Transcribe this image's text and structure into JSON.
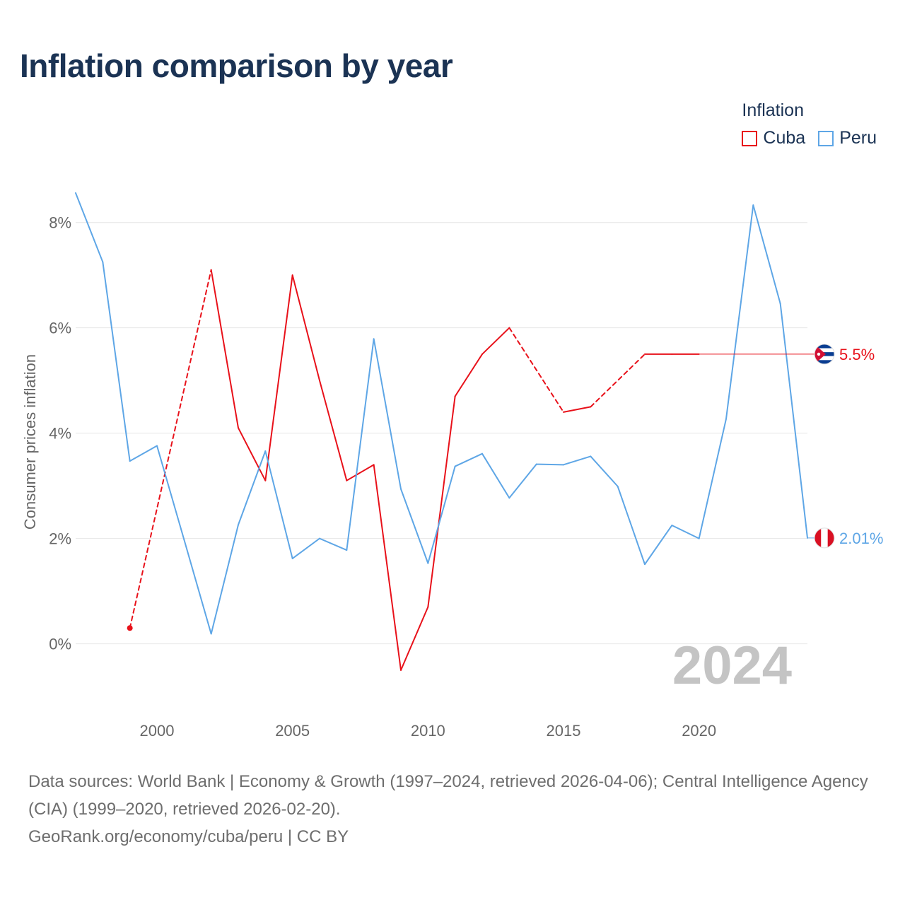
{
  "title": "Inflation comparison by year",
  "legend": {
    "title": "Inflation",
    "items": [
      {
        "name": "Cuba",
        "color": "#e8111a"
      },
      {
        "name": "Peru",
        "color": "#5ea6e6"
      }
    ]
  },
  "year_label": "2024",
  "sources": {
    "line1": "Data sources: World Bank | Economy & Growth (1997–2024, retrieved 2026-04-06); Central Intelligence Agency (CIA) (1999–2020, retrieved 2026-02-20).",
    "line2": "GeoRank.org/economy/cuba/peru | CC BY"
  },
  "chart_data": {
    "type": "line",
    "title": "Inflation comparison by year",
    "xlabel": "",
    "ylabel": "Consumer prices inflation",
    "xlim": [
      1997,
      2024
    ],
    "ylim": [
      -1.2,
      8.6
    ],
    "grid": true,
    "legend_position": "top-right",
    "x_ticks": [
      2000,
      2005,
      2010,
      2015,
      2020
    ],
    "y_ticks": [
      0,
      2,
      4,
      6,
      8
    ],
    "y_tick_labels": [
      "0%",
      "2%",
      "4%",
      "6%",
      "8%"
    ],
    "series": [
      {
        "name": "Cuba",
        "color": "#e8111a",
        "end_value_label": "5.5%",
        "points": [
          {
            "x": 1999,
            "y": 0.3
          },
          {
            "x": 2002,
            "y": 7.1
          },
          {
            "x": 2003,
            "y": 4.1
          },
          {
            "x": 2004,
            "y": 3.1
          },
          {
            "x": 2005,
            "y": 7.0
          },
          {
            "x": 2006,
            "y": 5.0
          },
          {
            "x": 2007,
            "y": 3.1
          },
          {
            "x": 2008,
            "y": 3.4
          },
          {
            "x": 2009,
            "y": -0.5
          },
          {
            "x": 2010,
            "y": 0.7
          },
          {
            "x": 2011,
            "y": 4.7
          },
          {
            "x": 2012,
            "y": 5.5
          },
          {
            "x": 2013,
            "y": 6.0
          },
          {
            "x": 2015,
            "y": 4.4
          },
          {
            "x": 2016,
            "y": 4.5
          },
          {
            "x": 2018,
            "y": 5.5
          },
          {
            "x": 2019,
            "y": 5.5
          },
          {
            "x": 2020,
            "y": 5.5
          }
        ]
      },
      {
        "name": "Peru",
        "color": "#5ea6e6",
        "end_value_label": "2.01%",
        "points": [
          {
            "x": 1997,
            "y": 8.56
          },
          {
            "x": 1998,
            "y": 7.25
          },
          {
            "x": 1999,
            "y": 3.47
          },
          {
            "x": 2000,
            "y": 3.76
          },
          {
            "x": 2001,
            "y": 1.98
          },
          {
            "x": 2002,
            "y": 0.19
          },
          {
            "x": 2003,
            "y": 2.26
          },
          {
            "x": 2004,
            "y": 3.66
          },
          {
            "x": 2005,
            "y": 1.62
          },
          {
            "x": 2006,
            "y": 2.0
          },
          {
            "x": 2007,
            "y": 1.78
          },
          {
            "x": 2008,
            "y": 5.79
          },
          {
            "x": 2009,
            "y": 2.94
          },
          {
            "x": 2010,
            "y": 1.53
          },
          {
            "x": 2011,
            "y": 3.37
          },
          {
            "x": 2012,
            "y": 3.61
          },
          {
            "x": 2013,
            "y": 2.77
          },
          {
            "x": 2014,
            "y": 3.41
          },
          {
            "x": 2015,
            "y": 3.4
          },
          {
            "x": 2016,
            "y": 3.56
          },
          {
            "x": 2017,
            "y": 2.99
          },
          {
            "x": 2018,
            "y": 1.51
          },
          {
            "x": 2019,
            "y": 2.25
          },
          {
            "x": 2020,
            "y": 2.0
          },
          {
            "x": 2021,
            "y": 4.27
          },
          {
            "x": 2022,
            "y": 8.33
          },
          {
            "x": 2023,
            "y": 6.46
          },
          {
            "x": 2024,
            "y": 2.01
          }
        ]
      }
    ]
  }
}
